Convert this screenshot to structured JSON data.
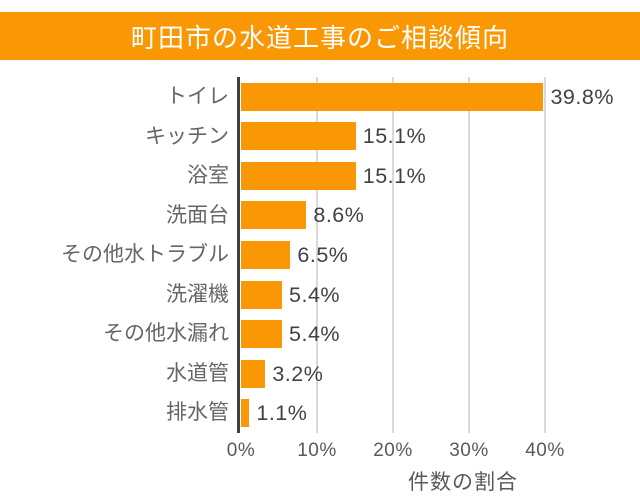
{
  "title": "町田市の水道工事のご相談傾向",
  "colors": {
    "accent_orange": "#FA9705",
    "banner_text": "#FFFFFF",
    "grid": "#D9D9D9",
    "axis": "#3F3F3F",
    "category_label": "#666666",
    "value_label": "#424242",
    "tick_label": "#595959"
  },
  "chart_data": {
    "type": "bar",
    "orientation": "horizontal",
    "title": "町田市の水道工事のご相談傾向",
    "categories": [
      "トイレ",
      "キッチン",
      "浴室",
      "洗面台",
      "その他水トラブル",
      "洗濯機",
      "その他水漏れ",
      "水道管",
      "排水管"
    ],
    "values": [
      39.8,
      15.1,
      15.1,
      8.6,
      6.5,
      5.4,
      5.4,
      3.2,
      1.1
    ],
    "value_labels": [
      "39.8%",
      "15.1%",
      "15.1%",
      "8.6%",
      "6.5%",
      "5.4%",
      "5.4%",
      "3.2%",
      "1.1%"
    ],
    "xlabel": "件数の割合",
    "ylabel": "",
    "xlim": [
      0,
      40
    ],
    "x_ticks": [
      0,
      10,
      20,
      30,
      40
    ],
    "x_tick_labels": [
      "0%",
      "10%",
      "20%",
      "30%",
      "40%"
    ],
    "grid": true,
    "legend": false,
    "bar_color": "#FA9705"
  }
}
